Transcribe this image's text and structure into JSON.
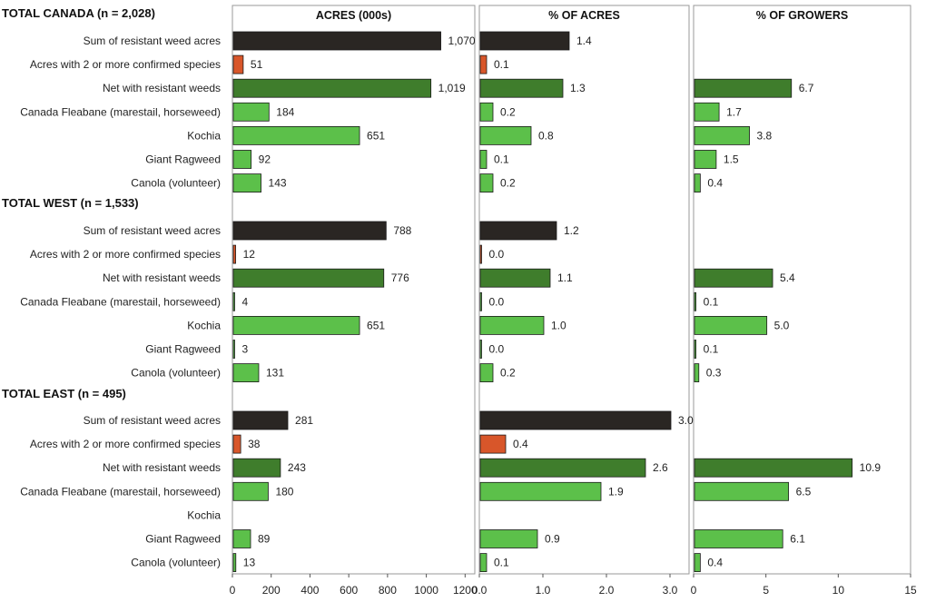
{
  "chart_data": {
    "type": "bar",
    "orientation": "horizontal",
    "colors": {
      "sum": "#2a2623",
      "two": "#d8562a",
      "net": "#3f7d2c",
      "weed": "#5cc04a"
    },
    "groups": [
      {
        "title": "TOTAL CANADA (n = 2,028)",
        "rows": [
          {
            "label": "Sum of resistant weed acres",
            "kind": "sum",
            "acres": 1070,
            "acres_label": "1,070",
            "pct_acres": 1.4,
            "pct_acres_label": "1.4",
            "pct_growers": null,
            "pct_growers_label": null
          },
          {
            "label": "Acres with 2 or more confirmed species",
            "kind": "two",
            "acres": 51,
            "acres_label": "51",
            "pct_acres": 0.1,
            "pct_acres_label": "0.1",
            "pct_growers": null,
            "pct_growers_label": null
          },
          {
            "label": "Net with resistant weeds",
            "kind": "net",
            "acres": 1019,
            "acres_label": "1,019",
            "pct_acres": 1.3,
            "pct_acres_label": "1.3",
            "pct_growers": 6.7,
            "pct_growers_label": "6.7"
          },
          {
            "label": "Canada Fleabane (marestail, horseweed)",
            "kind": "weed",
            "acres": 184,
            "acres_label": "184",
            "pct_acres": 0.2,
            "pct_acres_label": "0.2",
            "pct_growers": 1.7,
            "pct_growers_label": "1.7"
          },
          {
            "label": "Kochia",
            "kind": "weed",
            "acres": 651,
            "acres_label": "651",
            "pct_acres": 0.8,
            "pct_acres_label": "0.8",
            "pct_growers": 3.8,
            "pct_growers_label": "3.8"
          },
          {
            "label": "Giant Ragweed",
            "kind": "weed",
            "acres": 92,
            "acres_label": "92",
            "pct_acres": 0.1,
            "pct_acres_label": "0.1",
            "pct_growers": 1.5,
            "pct_growers_label": "1.5"
          },
          {
            "label": "Canola (volunteer)",
            "kind": "weed",
            "acres": 143,
            "acres_label": "143",
            "pct_acres": 0.2,
            "pct_acres_label": "0.2",
            "pct_growers": 0.4,
            "pct_growers_label": "0.4"
          }
        ]
      },
      {
        "title": "TOTAL WEST (n = 1,533)",
        "rows": [
          {
            "label": "Sum of resistant weed acres",
            "kind": "sum",
            "acres": 788,
            "acres_label": "788",
            "pct_acres": 1.2,
            "pct_acres_label": "1.2",
            "pct_growers": null,
            "pct_growers_label": null
          },
          {
            "label": "Acres with 2 or more confirmed species",
            "kind": "two",
            "acres": 12,
            "acres_label": "12",
            "pct_acres": 0.0,
            "pct_acres_label": "0.0",
            "pct_growers": null,
            "pct_growers_label": null
          },
          {
            "label": "Net with resistant weeds",
            "kind": "net",
            "acres": 776,
            "acres_label": "776",
            "pct_acres": 1.1,
            "pct_acres_label": "1.1",
            "pct_growers": 5.4,
            "pct_growers_label": "5.4"
          },
          {
            "label": "Canada Fleabane (marestail, horseweed)",
            "kind": "weed",
            "acres": 4,
            "acres_label": "4",
            "pct_acres": 0.0,
            "pct_acres_label": "0.0",
            "pct_growers": 0.1,
            "pct_growers_label": "0.1"
          },
          {
            "label": "Kochia",
            "kind": "weed",
            "acres": 651,
            "acres_label": "651",
            "pct_acres": 1.0,
            "pct_acres_label": "1.0",
            "pct_growers": 5.0,
            "pct_growers_label": "5.0"
          },
          {
            "label": "Giant Ragweed",
            "kind": "weed",
            "acres": 3,
            "acres_label": "3",
            "pct_acres": 0.0,
            "pct_acres_label": "0.0",
            "pct_growers": 0.1,
            "pct_growers_label": "0.1"
          },
          {
            "label": "Canola (volunteer)",
            "kind": "weed",
            "acres": 131,
            "acres_label": "131",
            "pct_acres": 0.2,
            "pct_acres_label": "0.2",
            "pct_growers": 0.3,
            "pct_growers_label": "0.3"
          }
        ]
      },
      {
        "title": "TOTAL EAST (n = 495)",
        "rows": [
          {
            "label": "Sum of resistant weed acres",
            "kind": "sum",
            "acres": 281,
            "acres_label": "281",
            "pct_acres": 3.0,
            "pct_acres_label": "3.0",
            "pct_growers": null,
            "pct_growers_label": null
          },
          {
            "label": "Acres with 2 or more confirmed species",
            "kind": "two",
            "acres": 38,
            "acres_label": "38",
            "pct_acres": 0.4,
            "pct_acres_label": "0.4",
            "pct_growers": null,
            "pct_growers_label": null
          },
          {
            "label": "Net with resistant weeds",
            "kind": "net",
            "acres": 243,
            "acres_label": "243",
            "pct_acres": 2.6,
            "pct_acres_label": "2.6",
            "pct_growers": 10.9,
            "pct_growers_label": "10.9"
          },
          {
            "label": "Canada Fleabane (marestail, horseweed)",
            "kind": "weed",
            "acres": 180,
            "acres_label": "180",
            "pct_acres": 1.9,
            "pct_acres_label": "1.9",
            "pct_growers": 6.5,
            "pct_growers_label": "6.5"
          },
          {
            "label": "Kochia",
            "kind": "weed",
            "acres": null,
            "acres_label": null,
            "pct_acres": null,
            "pct_acres_label": null,
            "pct_growers": null,
            "pct_growers_label": null
          },
          {
            "label": "Giant Ragweed",
            "kind": "weed",
            "acres": 89,
            "acres_label": "89",
            "pct_acres": 0.9,
            "pct_acres_label": "0.9",
            "pct_growers": 6.1,
            "pct_growers_label": "6.1"
          },
          {
            "label": "Canola (volunteer)",
            "kind": "weed",
            "acres": 13,
            "acres_label": "13",
            "pct_acres": 0.1,
            "pct_acres_label": "0.1",
            "pct_growers": 0.4,
            "pct_growers_label": "0.4"
          }
        ]
      }
    ],
    "panels": [
      {
        "key": "acres",
        "title": "ACRES (000s)",
        "xlim": [
          0,
          1250
        ],
        "ticks": [
          0,
          200,
          400,
          600,
          800,
          1000,
          1200
        ],
        "tick_labels": [
          "0",
          "200",
          "400",
          "600",
          "800",
          "1000",
          "1200"
        ]
      },
      {
        "key": "pct_acres",
        "title": "% OF ACRES",
        "xlim": [
          0,
          3.3
        ],
        "ticks": [
          0,
          1,
          2,
          3
        ],
        "tick_labels": [
          "0.0",
          "1.0",
          "2.0",
          "3.0"
        ]
      },
      {
        "key": "pct_growers",
        "title": "% OF GROWERS",
        "xlim": [
          0,
          15
        ],
        "ticks": [
          0,
          5,
          10,
          15
        ],
        "tick_labels": [
          "0",
          "5",
          "10",
          "15"
        ]
      }
    ]
  }
}
